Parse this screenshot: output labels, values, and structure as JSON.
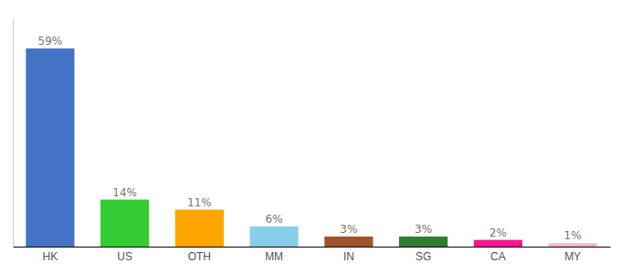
{
  "chart_data": {
    "type": "bar",
    "categories": [
      "HK",
      "US",
      "OTH",
      "MM",
      "IN",
      "SG",
      "CA",
      "MY"
    ],
    "values": [
      59,
      14,
      11,
      6,
      3,
      3,
      2,
      1
    ],
    "value_labels": [
      "59%",
      "14%",
      "11%",
      "6%",
      "3%",
      "3%",
      "2%",
      "1%"
    ],
    "colors": [
      "#4472C4",
      "#33CC33",
      "#FFA500",
      "#87CEEB",
      "#A0522D",
      "#2E7D32",
      "#FF1493",
      "#FFB6C1"
    ],
    "ylim": [
      0,
      68
    ],
    "data_labels": true,
    "tick_labels": "x"
  }
}
